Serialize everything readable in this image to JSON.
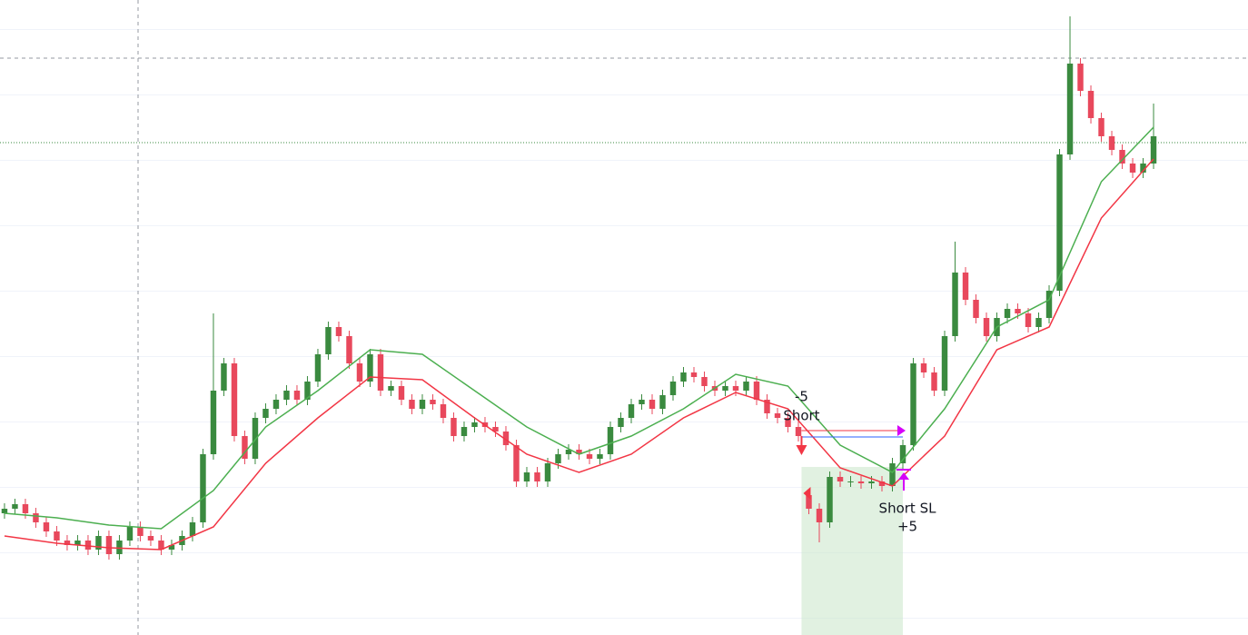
{
  "chart_data": {
    "type": "candlestick",
    "xlim": [
      -0.43,
      119.04
    ],
    "ylim": [
      0,
      69.9
    ],
    "up_color": "#3a8a3f",
    "down_color": "#e8485c",
    "x": [
      0,
      1,
      2,
      3,
      4,
      5,
      6,
      7,
      8,
      9,
      10,
      11,
      12,
      13,
      14,
      15,
      16,
      17,
      18,
      19,
      20,
      21,
      22,
      23,
      24,
      25,
      26,
      27,
      28,
      29,
      30,
      31,
      32,
      33,
      34,
      35,
      36,
      37,
      38,
      39,
      40,
      41,
      42,
      43,
      44,
      45,
      46,
      47,
      48,
      49,
      50,
      51,
      52,
      53,
      54,
      55,
      56,
      57,
      58,
      59,
      60,
      61,
      62,
      63,
      64,
      65,
      66,
      67,
      68,
      69,
      70,
      71,
      72,
      73,
      74,
      75,
      76,
      77,
      78,
      79,
      80,
      81,
      82,
      83,
      84,
      85,
      86,
      87,
      88,
      89,
      90,
      91,
      92,
      93,
      94,
      95,
      96,
      97,
      98,
      99,
      100,
      101,
      102,
      103,
      104,
      105,
      106,
      107,
      108,
      109,
      110
    ],
    "open": [
      13.4,
      13.9,
      14.4,
      13.4,
      12.4,
      11.4,
      10.4,
      9.9,
      10.4,
      9.4,
      10.9,
      8.9,
      10.4,
      11.9,
      10.9,
      10.4,
      9.4,
      9.9,
      10.9,
      12.4,
      19.9,
      26.9,
      29.9,
      21.9,
      19.4,
      23.9,
      24.9,
      25.9,
      26.9,
      25.9,
      27.9,
      30.9,
      33.9,
      32.9,
      29.9,
      27.9,
      30.9,
      26.9,
      27.4,
      25.9,
      24.9,
      25.9,
      25.4,
      23.9,
      21.9,
      22.9,
      23.4,
      22.9,
      22.4,
      20.9,
      16.9,
      17.9,
      16.9,
      18.9,
      19.9,
      20.4,
      19.9,
      19.4,
      19.9,
      22.9,
      23.9,
      25.4,
      25.9,
      24.9,
      26.4,
      27.9,
      28.9,
      28.4,
      27.4,
      26.9,
      27.4,
      26.9,
      27.9,
      25.9,
      24.4,
      23.9,
      22.9,
      15.4,
      13.9,
      12.4,
      17.4,
      16.9,
      16.9,
      16.7,
      16.9,
      16.4,
      18.9,
      20.9,
      29.9,
      28.9,
      26.9,
      32.9,
      39.9,
      36.9,
      34.9,
      32.9,
      34.9,
      35.9,
      35.4,
      33.9,
      34.9,
      37.9,
      52.9,
      62.9,
      59.9,
      56.9,
      54.9,
      53.4,
      51.9,
      50.9,
      51.9
    ],
    "high": [
      14.5,
      15.0,
      15.0,
      14.0,
      13.0,
      12.0,
      11.0,
      11.0,
      11.0,
      11.5,
      11.5,
      11.0,
      12.5,
      12.5,
      11.5,
      11.0,
      10.5,
      11.5,
      13.0,
      20.5,
      35.4,
      30.5,
      30.5,
      22.5,
      24.5,
      25.5,
      26.5,
      27.5,
      27.5,
      28.5,
      31.5,
      34.5,
      34.5,
      33.5,
      30.5,
      31.5,
      31.5,
      28.0,
      28.0,
      26.5,
      26.5,
      26.5,
      26.0,
      24.5,
      23.5,
      24.0,
      24.0,
      23.5,
      23.0,
      21.5,
      18.5,
      18.5,
      19.5,
      20.5,
      21.0,
      21.0,
      20.5,
      20.5,
      23.5,
      24.5,
      26.0,
      26.5,
      26.5,
      27.0,
      28.5,
      29.5,
      29.5,
      29.0,
      28.0,
      28.0,
      28.0,
      28.5,
      28.5,
      26.5,
      25.0,
      24.5,
      23.5,
      16.0,
      14.5,
      18.0,
      18.0,
      17.5,
      17.5,
      17.5,
      17.5,
      19.5,
      21.5,
      30.5,
      30.5,
      29.5,
      33.5,
      43.3,
      40.5,
      37.5,
      35.5,
      35.5,
      36.5,
      36.5,
      36.0,
      35.5,
      38.5,
      53.5,
      68.1,
      63.5,
      60.5,
      57.5,
      55.5,
      54.0,
      52.5,
      52.5,
      58.5
    ],
    "low": [
      12.8,
      13.3,
      12.8,
      11.8,
      10.8,
      9.8,
      9.3,
      9.3,
      8.8,
      8.8,
      8.3,
      8.3,
      9.8,
      10.3,
      9.8,
      8.8,
      8.8,
      9.3,
      10.3,
      11.8,
      19.3,
      26.3,
      21.3,
      18.8,
      18.8,
      23.3,
      24.3,
      25.3,
      25.3,
      25.3,
      27.3,
      30.3,
      32.3,
      29.3,
      27.3,
      27.3,
      26.3,
      26.3,
      25.3,
      24.3,
      24.3,
      24.8,
      23.3,
      21.3,
      21.3,
      22.3,
      22.3,
      21.8,
      20.3,
      16.3,
      16.3,
      16.3,
      16.3,
      18.3,
      19.3,
      19.3,
      18.8,
      18.8,
      19.3,
      22.3,
      23.3,
      24.8,
      24.3,
      24.3,
      25.8,
      27.3,
      27.8,
      26.8,
      26.3,
      26.3,
      26.3,
      26.3,
      25.3,
      23.8,
      23.3,
      22.3,
      21.3,
      13.3,
      10.2,
      11.8,
      16.3,
      16.3,
      16.1,
      16.1,
      15.8,
      15.8,
      18.3,
      20.3,
      28.3,
      26.3,
      26.3,
      32.3,
      36.3,
      34.3,
      32.3,
      32.3,
      34.3,
      34.8,
      33.3,
      33.3,
      34.3,
      37.3,
      52.3,
      59.3,
      56.3,
      54.3,
      52.8,
      51.3,
      50.3,
      50.3,
      51.3
    ],
    "close": [
      13.9,
      14.4,
      13.4,
      12.4,
      11.4,
      10.4,
      9.9,
      10.4,
      9.4,
      10.9,
      8.9,
      10.4,
      11.9,
      10.9,
      10.4,
      9.4,
      9.9,
      10.9,
      12.4,
      19.9,
      26.9,
      29.9,
      21.9,
      19.4,
      23.9,
      24.9,
      25.9,
      26.9,
      25.9,
      27.9,
      30.9,
      33.9,
      32.9,
      29.9,
      27.9,
      30.9,
      26.9,
      27.4,
      25.9,
      24.9,
      25.9,
      25.4,
      23.9,
      21.9,
      22.9,
      23.4,
      22.9,
      22.4,
      20.9,
      16.9,
      17.9,
      16.9,
      18.9,
      19.9,
      20.4,
      19.9,
      19.4,
      19.9,
      22.9,
      23.9,
      25.4,
      25.9,
      24.9,
      26.4,
      27.9,
      28.9,
      28.4,
      27.4,
      26.9,
      27.4,
      26.9,
      27.9,
      25.9,
      24.4,
      23.9,
      22.9,
      21.9,
      13.9,
      12.4,
      17.4,
      16.9,
      16.9,
      16.7,
      16.9,
      16.4,
      18.9,
      20.9,
      29.9,
      28.9,
      26.9,
      32.9,
      39.9,
      36.9,
      34.9,
      32.9,
      34.9,
      35.9,
      35.4,
      33.9,
      34.9,
      37.9,
      52.9,
      62.9,
      59.9,
      56.9,
      54.9,
      53.4,
      51.9,
      50.9,
      51.9,
      54.9
    ],
    "moving_averages": [
      {
        "color": "#4caf50",
        "x": [
          0,
          5,
          10,
          15,
          20,
          25,
          30,
          35,
          40,
          45,
          50,
          55,
          60,
          65,
          70,
          75,
          80,
          85,
          90,
          95,
          100,
          105,
          110
        ],
        "values": [
          13.4,
          12.9,
          12.1,
          11.7,
          15.9,
          22.9,
          26.9,
          31.4,
          30.9,
          26.9,
          22.9,
          19.9,
          21.9,
          24.9,
          28.7,
          27.4,
          20.9,
          17.9,
          24.9,
          33.9,
          36.9,
          49.9,
          55.9
        ]
      },
      {
        "color": "#f23645",
        "x": [
          0,
          5,
          10,
          15,
          20,
          25,
          30,
          35,
          40,
          45,
          50,
          55,
          60,
          65,
          70,
          75,
          80,
          85,
          90,
          95,
          100,
          105,
          110
        ],
        "values": [
          10.9,
          10.1,
          9.6,
          9.4,
          11.9,
          18.9,
          23.9,
          28.4,
          28.1,
          23.9,
          19.9,
          17.9,
          19.9,
          23.9,
          26.7,
          24.9,
          18.4,
          16.4,
          21.9,
          31.4,
          33.9,
          45.9,
          52.4
        ]
      }
    ],
    "trade": {
      "entry_x": 76,
      "exit_x": 86,
      "price": 22.5,
      "entry_pnl": "-5",
      "entry_label": "Short",
      "exit_label": "Short SL",
      "exit_pnl": "+5"
    }
  }
}
